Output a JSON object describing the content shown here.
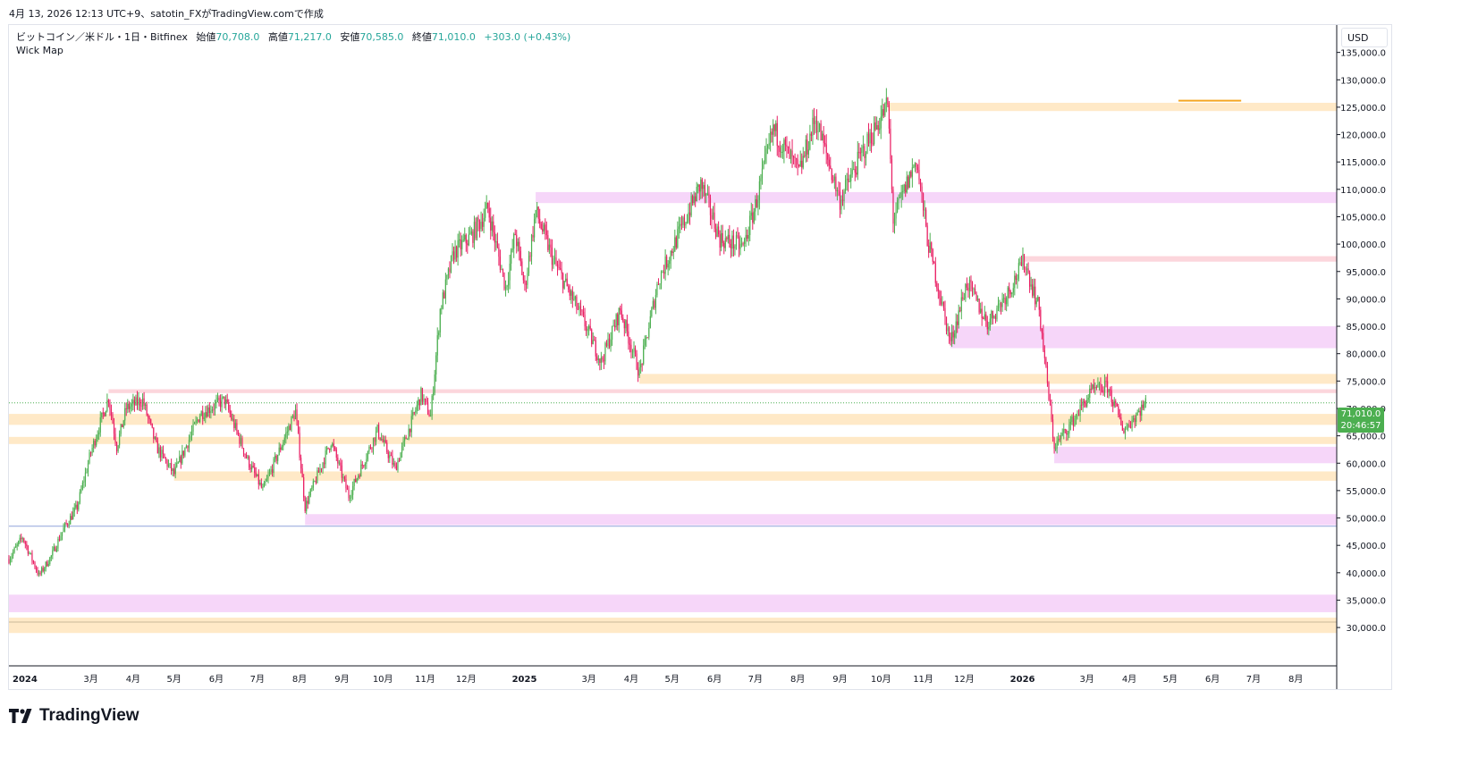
{
  "header": {
    "caption": "4月 13, 2026 12:13 UTC+9、satotin_FXがTradingView.comで作成"
  },
  "legend": {
    "symbol": "ビットコイン／米ドル・1日・Bitfinex",
    "open_label": "始値",
    "open": "70,708.0",
    "high_label": "高値",
    "high": "71,217.0",
    "low_label": "安値",
    "low": "70,585.0",
    "close_label": "終値",
    "close": "71,010.0",
    "change": "+303.0 (+0.43%)",
    "indicator": "Wick Map"
  },
  "currency": "USD",
  "last_price": {
    "price": "71,010.0",
    "countdown": "20:46:57"
  },
  "brand": {
    "name": "TradingView"
  },
  "colors": {
    "up": "#26a69a",
    "up_candle": "#4caf50",
    "down_candle": "#e91e63",
    "zone_orange": "#ffe9c7",
    "zone_pink": "#f6d6f9",
    "zone_red": "#fcd6dc",
    "hline_blue": "#90a4dc",
    "last_price_line": "#4caf50",
    "orange_line": "#f5a623"
  },
  "chart_data": {
    "type": "candlestick",
    "title": "ビットコイン／米ドル・1日・Bitfinex",
    "ylabel": "USD",
    "ylim": [
      25000,
      140000
    ],
    "y_ticks": [
      30000,
      35000,
      40000,
      45000,
      50000,
      55000,
      60000,
      65000,
      70000,
      75000,
      80000,
      85000,
      90000,
      95000,
      100000,
      105000,
      110000,
      115000,
      120000,
      125000,
      130000,
      135000
    ],
    "y_tick_labels": [
      "30,000.0",
      "35,000.0",
      "40,000.0",
      "45,000.0",
      "50,000.0",
      "55,000.0",
      "60,000.0",
      "65,000.0",
      "70,000.0",
      "75,000.0",
      "80,000.0",
      "85,000.0",
      "90,000.0",
      "95,000.0",
      "100,000.0",
      "105,000.0",
      "110,000.0",
      "115,000.0",
      "120,000.0",
      "125,000.0",
      "130,000.0",
      "135,000.0"
    ],
    "x_range": [
      "2024-01-01",
      "2026-08-31"
    ],
    "x_ticks": [
      {
        "date": "2024-01-01",
        "label": "2024",
        "bold": true
      },
      {
        "date": "2024-03-01",
        "label": "3月"
      },
      {
        "date": "2024-04-01",
        "label": "4月"
      },
      {
        "date": "2024-05-01",
        "label": "5月"
      },
      {
        "date": "2024-06-01",
        "label": "6月"
      },
      {
        "date": "2024-07-01",
        "label": "7月"
      },
      {
        "date": "2024-08-01",
        "label": "8月"
      },
      {
        "date": "2024-09-01",
        "label": "9月"
      },
      {
        "date": "2024-10-01",
        "label": "10月"
      },
      {
        "date": "2024-11-01",
        "label": "11月"
      },
      {
        "date": "2024-12-01",
        "label": "12月"
      },
      {
        "date": "2025-01-01",
        "label": "2025",
        "bold": true
      },
      {
        "date": "2025-03-01",
        "label": "3月"
      },
      {
        "date": "2025-04-01",
        "label": "4月"
      },
      {
        "date": "2025-05-01",
        "label": "5月"
      },
      {
        "date": "2025-06-01",
        "label": "6月"
      },
      {
        "date": "2025-07-01",
        "label": "7月"
      },
      {
        "date": "2025-08-01",
        "label": "8月"
      },
      {
        "date": "2025-09-01",
        "label": "9月"
      },
      {
        "date": "2025-10-01",
        "label": "10月"
      },
      {
        "date": "2025-11-01",
        "label": "11月"
      },
      {
        "date": "2025-12-01",
        "label": "12月"
      },
      {
        "date": "2026-01-01",
        "label": "2026",
        "bold": true
      },
      {
        "date": "2026-03-01",
        "label": "3月"
      },
      {
        "date": "2026-04-01",
        "label": "4月"
      },
      {
        "date": "2026-05-01",
        "label": "5月"
      },
      {
        "date": "2026-06-01",
        "label": "6月"
      },
      {
        "date": "2026-07-01",
        "label": "7月"
      },
      {
        "date": "2026-08-01",
        "label": "8月"
      }
    ],
    "price_path": [
      [
        "2024-01-01",
        42500
      ],
      [
        "2024-01-11",
        46500
      ],
      [
        "2024-01-23",
        39500
      ],
      [
        "2024-02-01",
        43000
      ],
      [
        "2024-02-10",
        48000
      ],
      [
        "2024-02-20",
        52000
      ],
      [
        "2024-03-01",
        62000
      ],
      [
        "2024-03-14",
        72000
      ],
      [
        "2024-03-20",
        63000
      ],
      [
        "2024-03-27",
        70000
      ],
      [
        "2024-04-08",
        71500
      ],
      [
        "2024-04-18",
        63000
      ],
      [
        "2024-05-01",
        58000
      ],
      [
        "2024-05-20",
        69000
      ],
      [
        "2024-06-07",
        71500
      ],
      [
        "2024-06-24",
        60500
      ],
      [
        "2024-07-05",
        55000
      ],
      [
        "2024-07-29",
        69500
      ],
      [
        "2024-08-05",
        52000
      ],
      [
        "2024-08-24",
        64000
      ],
      [
        "2024-09-06",
        54000
      ],
      [
        "2024-09-27",
        66000
      ],
      [
        "2024-10-10",
        59000
      ],
      [
        "2024-10-29",
        72500
      ],
      [
        "2024-11-05",
        68500
      ],
      [
        "2024-11-12",
        88000
      ],
      [
        "2024-11-22",
        98500
      ],
      [
        "2024-12-05",
        101500
      ],
      [
        "2024-12-17",
        106500
      ],
      [
        "2024-12-30",
        92000
      ],
      [
        "2025-01-06",
        102000
      ],
      [
        "2025-01-13",
        92000
      ],
      [
        "2025-01-21",
        106000
      ],
      [
        "2025-02-03",
        97000
      ],
      [
        "2025-02-25",
        86000
      ],
      [
        "2025-03-10",
        78500
      ],
      [
        "2025-03-24",
        88000
      ],
      [
        "2025-04-07",
        76500
      ],
      [
        "2025-04-21",
        93500
      ],
      [
        "2025-05-08",
        103000
      ],
      [
        "2025-05-22",
        111000
      ],
      [
        "2025-06-05",
        101000
      ],
      [
        "2025-06-22",
        99500
      ],
      [
        "2025-07-01",
        107000
      ],
      [
        "2025-07-14",
        121000
      ],
      [
        "2025-08-02",
        113000
      ],
      [
        "2025-08-14",
        123000
      ],
      [
        "2025-09-01",
        108000
      ],
      [
        "2025-09-18",
        117000
      ],
      [
        "2025-10-06",
        125500
      ],
      [
        "2025-10-10",
        104500
      ],
      [
        "2025-10-27",
        115500
      ],
      [
        "2025-11-04",
        101000
      ],
      [
        "2025-11-21",
        82000
      ],
      [
        "2025-12-03",
        93000
      ],
      [
        "2025-12-18",
        85500
      ],
      [
        "2026-01-05",
        92500
      ],
      [
        "2026-01-14",
        97000
      ],
      [
        "2026-01-25",
        88000
      ],
      [
        "2026-02-05",
        63000
      ],
      [
        "2026-02-18",
        67500
      ],
      [
        "2026-03-04",
        73000
      ],
      [
        "2026-03-16",
        74000
      ],
      [
        "2026-03-28",
        66000
      ],
      [
        "2026-04-13",
        71010
      ]
    ],
    "zones": [
      {
        "kind": "orange",
        "from": "2025-10-06",
        "y1": 124300,
        "y2": 125800
      },
      {
        "kind": "pink",
        "from": "2025-01-21",
        "y1": 107500,
        "y2": 109500
      },
      {
        "kind": "red",
        "from": "2026-01-14",
        "y1": 96800,
        "y2": 97800
      },
      {
        "kind": "pink",
        "from": "2025-11-21",
        "y1": 81000,
        "y2": 85000
      },
      {
        "kind": "orange",
        "from": "2025-04-07",
        "y1": 74500,
        "y2": 76300
      },
      {
        "kind": "red",
        "from": "2024-03-14",
        "y1": 72800,
        "y2": 73500
      },
      {
        "kind": "orange",
        "from": "2024-01-01",
        "y1": 67000,
        "y2": 69000
      },
      {
        "kind": "orange",
        "from": "2024-01-01",
        "y1": 63500,
        "y2": 64800
      },
      {
        "kind": "pink",
        "from": "2026-02-05",
        "y1": 60000,
        "y2": 63000
      },
      {
        "kind": "orange",
        "from": "2024-05-01",
        "y1": 56800,
        "y2": 58500
      },
      {
        "kind": "pink",
        "from": "2024-08-05",
        "y1": 48700,
        "y2": 50700
      },
      {
        "kind": "pink",
        "from": "2024-01-01",
        "y1": 32800,
        "y2": 36000
      },
      {
        "kind": "orange",
        "from": "2024-01-01",
        "y1": 29000,
        "y2": 31800
      }
    ],
    "hlines": [
      {
        "kind": "blue",
        "y": 48500
      },
      {
        "kind": "last",
        "y": 71010
      },
      {
        "kind": "orange_segment",
        "y": 126200,
        "from": "2026-05-07",
        "to": "2026-06-22"
      },
      {
        "kind": "beige",
        "y": 31000
      }
    ]
  }
}
